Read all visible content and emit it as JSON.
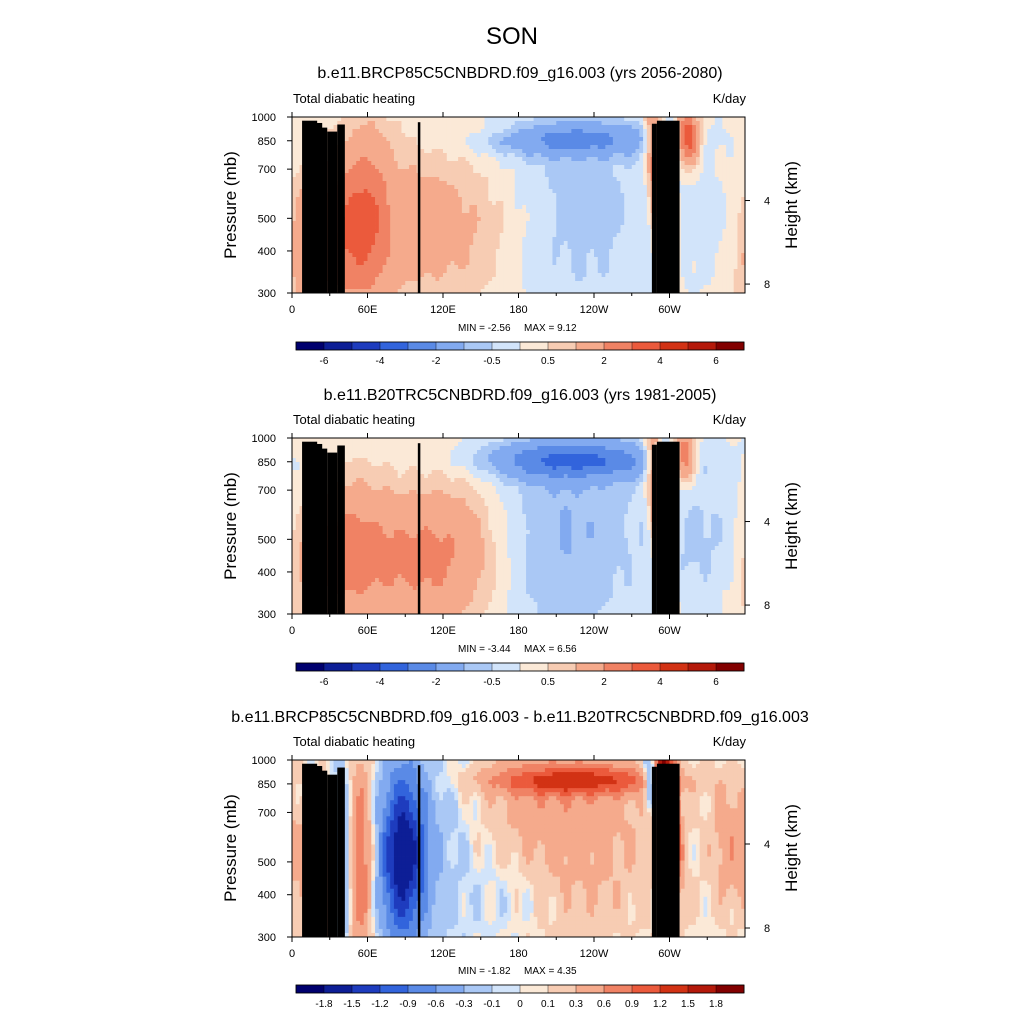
{
  "figure": {
    "title": "SON"
  },
  "chart_data": [
    {
      "type": "heatmap",
      "title": "b.e11.BRCP85C5CNBDRD.f09_g16.003 (yrs 2056-2080)",
      "left_label": "Total diabatic heating",
      "right_label": "K/day",
      "ylabel": "Pressure (mb)",
      "ylabel_right": "Height (km)",
      "xticks": [
        "0",
        "60E",
        "120E",
        "180",
        "120W",
        "60W"
      ],
      "xtick_lon": [
        0,
        60,
        120,
        180,
        240,
        300
      ],
      "xlim": [
        0,
        360
      ],
      "yticks": [
        "300",
        "400",
        "500",
        "700",
        "850",
        "1000"
      ],
      "ytick_p": [
        300,
        400,
        500,
        700,
        850,
        1000
      ],
      "ylim": [
        1000,
        300
      ],
      "ylog": true,
      "height_ticks": [
        "8",
        "4"
      ],
      "height_km": [
        8,
        4
      ],
      "min_label": "MIN =  -2.56",
      "max_label": "MAX =   9.12",
      "colorbar": {
        "labels": [
          "-6",
          "-4",
          "-2",
          "-0.5",
          "0.5",
          "2",
          "4",
          "6"
        ],
        "levels": [
          -7,
          -6,
          -5,
          -4,
          -3,
          -2,
          -1,
          -0.5,
          0,
          0.5,
          1,
          2,
          3,
          4,
          5,
          6,
          7
        ],
        "colors": [
          "#00006e",
          "#0d1e96",
          "#1e3cbe",
          "#3264dc",
          "#5a8ae6",
          "#82aaf0",
          "#aac8f5",
          "#d2e4fa",
          "#fbe9d7",
          "#f7ccb3",
          "#f5aa8c",
          "#f08264",
          "#eb5a3c",
          "#d23214",
          "#b4190a",
          "#820000"
        ]
      },
      "field": {
        "base": 0.1,
        "gain": 1.0,
        "features": [
          {
            "lon": 38,
            "p": 440,
            "w": 26,
            "h": 0.38,
            "amp": 2.2,
            "kind": "tilt"
          },
          {
            "lon": 120,
            "p": 470,
            "w": 60,
            "h": 0.4,
            "amp": 1.4,
            "kind": "band"
          },
          {
            "lon": 60,
            "p": 500,
            "w": 12,
            "h": 0.5,
            "amp": 1.2,
            "kind": "band"
          },
          {
            "lon": 215,
            "p": 520,
            "w": 48,
            "h": 0.55,
            "amp": -1.1,
            "kind": "band"
          },
          {
            "lon": 225,
            "p": 860,
            "w": 52,
            "h": 0.08,
            "amp": -2.0,
            "kind": "band"
          },
          {
            "lon": 290,
            "p": 600,
            "w": 5,
            "h": 0.45,
            "amp": 3.5,
            "kind": "tiltR"
          },
          {
            "lon": 315,
            "p": 870,
            "w": 6,
            "h": 0.12,
            "amp": 4.0,
            "kind": "band"
          },
          {
            "lon": 340,
            "p": 450,
            "w": 18,
            "h": 0.3,
            "amp": -0.5,
            "kind": "band"
          },
          {
            "lon": 160,
            "p": 920,
            "w": 30,
            "h": 0.05,
            "amp": 0.4,
            "kind": "band"
          }
        ]
      }
    },
    {
      "type": "heatmap",
      "title": "b.e11.B20TRC5CNBDRD.f09_g16.003 (yrs 1981-2005)",
      "left_label": "Total diabatic heating",
      "right_label": "K/day",
      "ylabel": "Pressure (mb)",
      "ylabel_right": "Height (km)",
      "xticks": [
        "0",
        "60E",
        "120E",
        "180",
        "120W",
        "60W"
      ],
      "xtick_lon": [
        0,
        60,
        120,
        180,
        240,
        300
      ],
      "xlim": [
        0,
        360
      ],
      "yticks": [
        "300",
        "400",
        "500",
        "700",
        "850",
        "1000"
      ],
      "ytick_p": [
        300,
        400,
        500,
        700,
        850,
        1000
      ],
      "ylim": [
        1000,
        300
      ],
      "ylog": true,
      "height_ticks": [
        "8",
        "4"
      ],
      "height_km": [
        8,
        4
      ],
      "min_label": "MIN =  -3.44",
      "max_label": "MAX =   6.56",
      "colorbar": {
        "labels": [
          "-6",
          "-4",
          "-2",
          "-0.5",
          "0.5",
          "2",
          "4",
          "6"
        ],
        "levels": [
          -7,
          -6,
          -5,
          -4,
          -3,
          -2,
          -1,
          -0.5,
          0,
          0.5,
          1,
          2,
          3,
          4,
          5,
          6,
          7
        ],
        "colors": [
          "#00006e",
          "#0d1e96",
          "#1e3cbe",
          "#3264dc",
          "#5a8ae6",
          "#82aaf0",
          "#aac8f5",
          "#d2e4fa",
          "#fbe9d7",
          "#f7ccb3",
          "#f5aa8c",
          "#f08264",
          "#eb5a3c",
          "#d23214",
          "#b4190a",
          "#820000"
        ]
      },
      "field": {
        "base": 0.1,
        "gain": 1.0,
        "features": [
          {
            "lon": 38,
            "p": 450,
            "w": 24,
            "h": 0.36,
            "amp": 1.8,
            "kind": "tilt"
          },
          {
            "lon": 90,
            "p": 430,
            "w": 40,
            "h": 0.32,
            "amp": 1.8,
            "kind": "band"
          },
          {
            "lon": 135,
            "p": 480,
            "w": 28,
            "h": 0.4,
            "amp": 1.0,
            "kind": "band"
          },
          {
            "lon": 215,
            "p": 520,
            "w": 46,
            "h": 0.55,
            "amp": -1.15,
            "kind": "band"
          },
          {
            "lon": 225,
            "p": 860,
            "w": 50,
            "h": 0.09,
            "amp": -2.8,
            "kind": "band"
          },
          {
            "lon": 290,
            "p": 620,
            "w": 5,
            "h": 0.45,
            "amp": 3.0,
            "kind": "tiltR"
          },
          {
            "lon": 312,
            "p": 880,
            "w": 6,
            "h": 0.12,
            "amp": 3.2,
            "kind": "band"
          },
          {
            "lon": 330,
            "p": 500,
            "w": 26,
            "h": 0.35,
            "amp": -0.7,
            "kind": "band"
          }
        ]
      }
    },
    {
      "type": "heatmap",
      "title": "b.e11.BRCP85C5CNBDRD.f09_g16.003 - b.e11.B20TRC5CNBDRD.f09_g16.003",
      "left_label": "Total diabatic heating",
      "right_label": "K/day",
      "ylabel": "Pressure (mb)",
      "ylabel_right": "Height (km)",
      "xticks": [
        "0",
        "60E",
        "120E",
        "180",
        "120W",
        "60W"
      ],
      "xtick_lon": [
        0,
        60,
        120,
        180,
        240,
        300
      ],
      "xlim": [
        0,
        360
      ],
      "yticks": [
        "300",
        "400",
        "500",
        "700",
        "850",
        "1000"
      ],
      "ytick_p": [
        300,
        400,
        500,
        700,
        850,
        1000
      ],
      "ylim": [
        1000,
        300
      ],
      "ylog": true,
      "height_ticks": [
        "8",
        "4"
      ],
      "height_km": [
        8,
        4
      ],
      "min_label": "MIN =  -1.82",
      "max_label": "MAX =   4.35",
      "colorbar": {
        "labels": [
          "-1.8",
          "-1.5",
          "-1.2",
          "-0.9",
          "-0.6",
          "-0.3",
          "-0.1",
          "0",
          "0.1",
          "0.3",
          "0.6",
          "0.9",
          "1.2",
          "1.5",
          "1.8"
        ],
        "levels": [
          -2.1,
          -1.8,
          -1.5,
          -1.2,
          -0.9,
          -0.6,
          -0.3,
          -0.1,
          0,
          0.1,
          0.3,
          0.6,
          0.9,
          1.2,
          1.5,
          1.8,
          2.1
        ],
        "colors": [
          "#00006e",
          "#0d1e96",
          "#1e3cbe",
          "#3264dc",
          "#5a8ae6",
          "#82aaf0",
          "#aac8f5",
          "#d2e4fa",
          "#fbe9d7",
          "#f7ccb3",
          "#f5aa8c",
          "#f08264",
          "#eb5a3c",
          "#d23214",
          "#b4190a",
          "#820000"
        ]
      },
      "field": {
        "base": 0.02,
        "gain": 1.0,
        "features": [
          {
            "lon": 88,
            "p": 520,
            "w": 13,
            "h": 0.42,
            "amp": -1.7,
            "kind": "band"
          },
          {
            "lon": 55,
            "p": 500,
            "w": 7,
            "h": 0.5,
            "amp": 0.9,
            "kind": "band"
          },
          {
            "lon": 20,
            "p": 420,
            "w": 8,
            "h": 0.35,
            "amp": 0.9,
            "kind": "band"
          },
          {
            "lon": 40,
            "p": 480,
            "w": 5,
            "h": 0.45,
            "amp": -0.6,
            "kind": "band"
          },
          {
            "lon": 210,
            "p": 640,
            "w": 55,
            "h": 0.5,
            "amp": 0.5,
            "kind": "band"
          },
          {
            "lon": 228,
            "p": 870,
            "w": 50,
            "h": 0.07,
            "amp": 1.05,
            "kind": "band"
          },
          {
            "lon": 180,
            "p": 420,
            "w": 25,
            "h": 0.25,
            "amp": -0.25,
            "kind": "band"
          },
          {
            "lon": 300,
            "p": 800,
            "w": 5,
            "h": 0.35,
            "amp": 2.2,
            "kind": "tiltR"
          },
          {
            "lon": 285,
            "p": 880,
            "w": 4,
            "h": 0.12,
            "amp": -1.0,
            "kind": "band"
          },
          {
            "lon": 350,
            "p": 560,
            "w": 12,
            "h": 0.3,
            "amp": 0.5,
            "kind": "band"
          },
          {
            "lon": 120,
            "p": 600,
            "w": 30,
            "h": 0.55,
            "amp": -0.3,
            "kind": "band"
          }
        ]
      }
    }
  ]
}
